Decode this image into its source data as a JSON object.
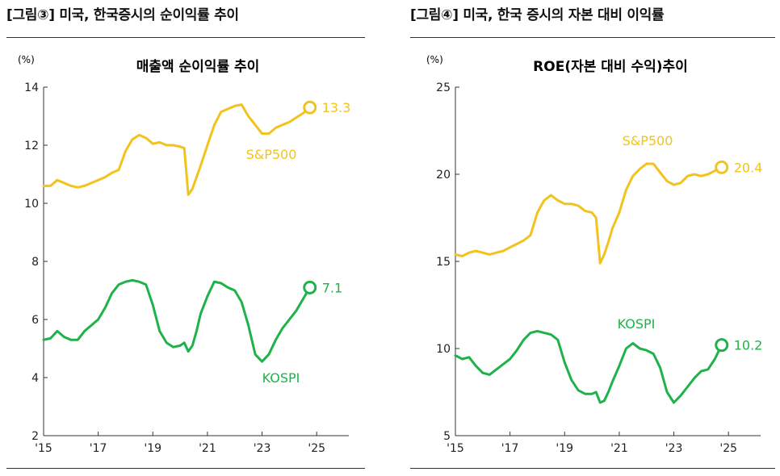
{
  "charts": [
    {
      "figure_title": "[그림③] 미국, 한국증시의 순이익률 추이",
      "chart_title": "매출액 순이익률 추이",
      "unit": "(%)",
      "colors": {
        "sp500": "#F2C31C",
        "kospi": "#1FB24A"
      }
    },
    {
      "figure_title": "[그림④] 미국, 한국 증시의 자본 대비 이익률",
      "chart_title": "ROE(자본 대비 수익)추이",
      "unit": "(%)",
      "colors": {
        "sp500": "#F2C31C",
        "kospi": "#1FB24A"
      }
    }
  ],
  "chart_data": [
    {
      "type": "line",
      "title": "매출액 순이익률 추이",
      "ylabel": "(%)",
      "xlabel": "",
      "ylim": [
        2,
        14
      ],
      "yticks": [
        2,
        4,
        6,
        8,
        10,
        12,
        14
      ],
      "xlim": [
        2015.0,
        2026.0
      ],
      "xticks": [
        2015,
        2017,
        2019,
        2021,
        2023,
        2025
      ],
      "xtick_labels": [
        "'15",
        "'17",
        "'19",
        "'21",
        "'23",
        "'25"
      ],
      "series": [
        {
          "name": "S&P500",
          "end_label": "13.3",
          "x": [
            2015.0,
            2015.25,
            2015.5,
            2015.75,
            2016.0,
            2016.25,
            2016.5,
            2016.75,
            2017.0,
            2017.25,
            2017.5,
            2017.75,
            2018.0,
            2018.25,
            2018.5,
            2018.75,
            2019.0,
            2019.25,
            2019.5,
            2019.75,
            2020.0,
            2020.15,
            2020.3,
            2020.45,
            2020.6,
            2020.75,
            2021.0,
            2021.25,
            2021.5,
            2021.75,
            2022.0,
            2022.25,
            2022.5,
            2022.75,
            2023.0,
            2023.25,
            2023.5,
            2023.75,
            2024.0,
            2024.25,
            2024.5,
            2024.75
          ],
          "values": [
            10.6,
            10.6,
            10.8,
            10.7,
            10.6,
            10.55,
            10.6,
            10.7,
            10.8,
            10.9,
            11.05,
            11.15,
            11.8,
            12.2,
            12.35,
            12.25,
            12.05,
            12.1,
            12.0,
            12.0,
            11.95,
            11.9,
            10.3,
            10.5,
            10.9,
            11.3,
            12.0,
            12.7,
            13.15,
            13.25,
            13.35,
            13.4,
            13.0,
            12.7,
            12.4,
            12.4,
            12.6,
            12.7,
            12.8,
            12.95,
            13.1,
            13.3
          ]
        },
        {
          "name": "KOSPI",
          "end_label": "7.1",
          "x": [
            2015.0,
            2015.25,
            2015.5,
            2015.75,
            2016.0,
            2016.25,
            2016.5,
            2016.75,
            2017.0,
            2017.25,
            2017.5,
            2017.75,
            2018.0,
            2018.25,
            2018.5,
            2018.75,
            2019.0,
            2019.25,
            2019.5,
            2019.75,
            2020.0,
            2020.15,
            2020.3,
            2020.45,
            2020.6,
            2020.75,
            2021.0,
            2021.25,
            2021.5,
            2021.75,
            2022.0,
            2022.25,
            2022.5,
            2022.75,
            2023.0,
            2023.25,
            2023.5,
            2023.75,
            2024.0,
            2024.25,
            2024.5,
            2024.75
          ],
          "values": [
            5.3,
            5.35,
            5.6,
            5.4,
            5.3,
            5.3,
            5.6,
            5.8,
            6.0,
            6.4,
            6.9,
            7.2,
            7.3,
            7.35,
            7.3,
            7.2,
            6.5,
            5.6,
            5.2,
            5.05,
            5.1,
            5.2,
            4.9,
            5.1,
            5.6,
            6.2,
            6.8,
            7.3,
            7.25,
            7.1,
            7.0,
            6.6,
            5.8,
            4.8,
            4.55,
            4.8,
            5.3,
            5.7,
            6.0,
            6.3,
            6.7,
            7.1
          ]
        }
      ]
    },
    {
      "type": "line",
      "title": "ROE(자본 대비 수익)추이",
      "ylabel": "(%)",
      "xlabel": "",
      "ylim": [
        5,
        25
      ],
      "yticks": [
        5,
        10,
        15,
        20,
        25
      ],
      "xlim": [
        2015.0,
        2026.0
      ],
      "xticks": [
        2015,
        2017,
        2019,
        2021,
        2023,
        2025
      ],
      "xtick_labels": [
        "'15",
        "'17",
        "'19",
        "'21",
        "'23",
        "'25"
      ],
      "series": [
        {
          "name": "S&P500",
          "end_label": "20.4",
          "x": [
            2015.0,
            2015.25,
            2015.5,
            2015.75,
            2016.0,
            2016.25,
            2016.5,
            2016.75,
            2017.0,
            2017.25,
            2017.5,
            2017.75,
            2018.0,
            2018.25,
            2018.5,
            2018.75,
            2019.0,
            2019.25,
            2019.5,
            2019.75,
            2020.0,
            2020.15,
            2020.3,
            2020.45,
            2020.6,
            2020.75,
            2021.0,
            2021.25,
            2021.5,
            2021.75,
            2022.0,
            2022.25,
            2022.5,
            2022.75,
            2023.0,
            2023.25,
            2023.5,
            2023.75,
            2024.0,
            2024.25,
            2024.5,
            2024.75
          ],
          "values": [
            15.4,
            15.3,
            15.5,
            15.6,
            15.5,
            15.4,
            15.5,
            15.6,
            15.8,
            16.0,
            16.2,
            16.5,
            17.8,
            18.5,
            18.8,
            18.5,
            18.3,
            18.3,
            18.2,
            17.9,
            17.8,
            17.5,
            14.9,
            15.4,
            16.1,
            16.9,
            17.8,
            19.1,
            19.9,
            20.3,
            20.6,
            20.6,
            20.1,
            19.6,
            19.4,
            19.5,
            19.9,
            20.0,
            19.9,
            20.0,
            20.2,
            20.4
          ]
        },
        {
          "name": "KOSPI",
          "end_label": "10.2",
          "x": [
            2015.0,
            2015.25,
            2015.5,
            2015.75,
            2016.0,
            2016.25,
            2016.5,
            2016.75,
            2017.0,
            2017.25,
            2017.5,
            2017.75,
            2018.0,
            2018.25,
            2018.5,
            2018.75,
            2019.0,
            2019.25,
            2019.5,
            2019.75,
            2020.0,
            2020.15,
            2020.3,
            2020.45,
            2020.6,
            2020.75,
            2021.0,
            2021.25,
            2021.5,
            2021.75,
            2022.0,
            2022.25,
            2022.5,
            2022.75,
            2023.0,
            2023.25,
            2023.5,
            2023.75,
            2024.0,
            2024.25,
            2024.5,
            2024.75
          ],
          "values": [
            9.6,
            9.4,
            9.5,
            9.0,
            8.6,
            8.5,
            8.8,
            9.1,
            9.4,
            9.9,
            10.5,
            10.9,
            11.0,
            10.9,
            10.8,
            10.5,
            9.2,
            8.2,
            7.6,
            7.4,
            7.4,
            7.5,
            6.9,
            7.0,
            7.5,
            8.1,
            9.0,
            10.0,
            10.3,
            10.0,
            9.9,
            9.7,
            8.9,
            7.5,
            6.9,
            7.3,
            7.8,
            8.3,
            8.7,
            8.8,
            9.4,
            10.2
          ]
        }
      ]
    }
  ]
}
